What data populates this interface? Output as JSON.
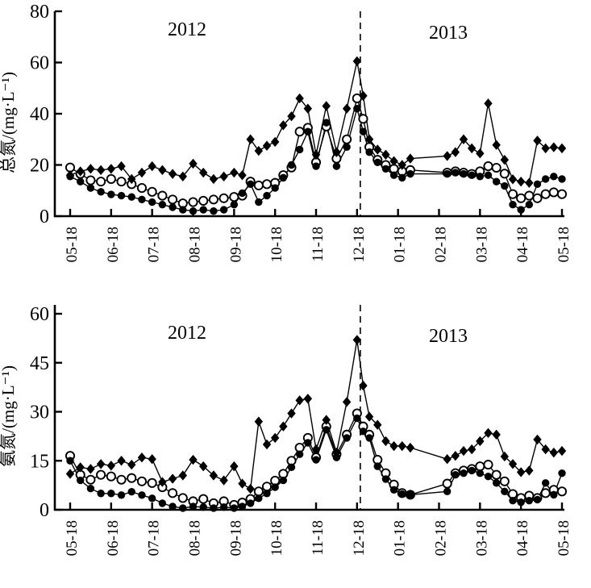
{
  "figure": {
    "type": "dual-line-chart",
    "background": "#ffffff",
    "line_color": "#000000"
  },
  "chart_data": [
    {
      "id": "total-nitrogen",
      "type": "line",
      "ylabel": "总氮/(mg·L⁻¹)",
      "xlabel": "",
      "ylim": [
        0,
        80
      ],
      "yticks": [
        0,
        20,
        40,
        60,
        80
      ],
      "xtick_labels": [
        "05-18",
        "06-18",
        "07-18",
        "08-18",
        "09-18",
        "10-18",
        "11-18",
        "12-18",
        "01-18",
        "02-18",
        "03-18",
        "04-18",
        "05-18"
      ],
      "annotations": [
        {
          "text": "2012"
        },
        {
          "text": "2013"
        }
      ],
      "year_divider_month": 7.08,
      "grid": false,
      "legend": "none",
      "x_months": [
        0,
        0.25,
        0.5,
        0.75,
        1,
        1.25,
        1.5,
        1.75,
        2,
        2.25,
        2.5,
        2.75,
        3,
        3.25,
        3.5,
        3.75,
        4,
        4.2,
        4.4,
        4.6,
        4.8,
        5,
        5.2,
        5.4,
        5.6,
        5.8,
        6,
        6.25,
        6.5,
        6.75,
        7,
        7.15,
        7.3,
        7.5,
        7.7,
        7.9,
        8.1,
        8.3,
        9.2,
        9.4,
        9.6,
        9.8,
        10,
        10.2,
        10.4,
        10.6,
        10.8,
        11,
        11.2,
        11.4,
        11.6,
        11.8,
        12
      ],
      "series": [
        {
          "name": "open-circle-site",
          "marker": "circle-open",
          "values": [
            19,
            16.5,
            14,
            13.5,
            14.5,
            13.5,
            12.5,
            11,
            9.5,
            8,
            6.5,
            5,
            5.5,
            6,
            6.5,
            7,
            7.5,
            8,
            13.5,
            12,
            12.5,
            13,
            16,
            19,
            33,
            34.5,
            21,
            35,
            22.5,
            30,
            46,
            38,
            27,
            22,
            20,
            18.5,
            17.5,
            18,
            17,
            17.5,
            17,
            16.5,
            17.5,
            19.5,
            18.9,
            16.6,
            8.6,
            7,
            8,
            7,
            8.6,
            9.3,
            8.6
          ]
        },
        {
          "name": "filled-circle-site",
          "marker": "circle-filled",
          "values": [
            15.5,
            13.5,
            11,
            9.5,
            8.5,
            8,
            7.5,
            6.5,
            5.5,
            4.5,
            3.5,
            2.5,
            2,
            2.5,
            2,
            2.5,
            4.5,
            9,
            12.5,
            5.5,
            8,
            11,
            15,
            20,
            26,
            33,
            19.5,
            36.5,
            19.5,
            27,
            42,
            33,
            25,
            21,
            18.5,
            16,
            15,
            16.5,
            16.5,
            17,
            16.5,
            16,
            15.5,
            16,
            13.5,
            11.8,
            4.5,
            2.5,
            4.5,
            12.5,
            14.5,
            15.5,
            14.5
          ]
        },
        {
          "name": "filled-diamond-site",
          "marker": "diamond",
          "values": [
            16,
            17.5,
            18.5,
            18,
            18.5,
            19.5,
            14.5,
            17,
            19.5,
            18,
            16.5,
            15.5,
            20.5,
            17,
            14.5,
            15.5,
            17,
            16,
            30,
            25.5,
            27.5,
            29,
            35.5,
            39,
            46,
            42,
            24,
            43,
            25,
            42,
            60.5,
            47,
            30,
            26,
            24,
            21.5,
            20,
            22.5,
            23.5,
            25,
            30,
            26.5,
            24.5,
            44,
            27.8,
            22,
            14.4,
            13.5,
            13,
            29.5,
            26.5,
            26.9,
            26.5
          ]
        }
      ]
    },
    {
      "id": "ammonia-nitrogen",
      "type": "line",
      "ylabel": "氨氮/(mg·L⁻¹)",
      "xlabel": "",
      "ylim": [
        0,
        60
      ],
      "yticks": [
        0,
        15,
        30,
        45,
        60
      ],
      "xtick_labels": [
        "05-18",
        "06-18",
        "07-18",
        "08-18",
        "09-18",
        "10-18",
        "11-18",
        "12-18",
        "01-18",
        "02-18",
        "03-18",
        "04-18",
        "05-18"
      ],
      "annotations": [
        {
          "text": "2012"
        },
        {
          "text": "2013"
        }
      ],
      "year_divider_month": 7.08,
      "grid": false,
      "legend": "none",
      "x_months": [
        0,
        0.25,
        0.5,
        0.75,
        1,
        1.25,
        1.5,
        1.75,
        2,
        2.25,
        2.5,
        2.75,
        3,
        3.25,
        3.5,
        3.75,
        4,
        4.2,
        4.4,
        4.6,
        4.8,
        5,
        5.2,
        5.4,
        5.6,
        5.8,
        6,
        6.25,
        6.5,
        6.75,
        7,
        7.15,
        7.3,
        7.5,
        7.7,
        7.9,
        8.1,
        8.3,
        9.2,
        9.4,
        9.6,
        9.8,
        10,
        10.2,
        10.4,
        10.6,
        10.8,
        11,
        11.2,
        11.4,
        11.6,
        11.8,
        12
      ],
      "series": [
        {
          "name": "open-circle-site",
          "marker": "circle-open",
          "values": [
            16.5,
            10.7,
            9.2,
            10.7,
            10.2,
            9.2,
            9.7,
            8.7,
            8.2,
            6.9,
            5.1,
            3.6,
            2.6,
            3.3,
            2,
            2.6,
            1.5,
            2.2,
            3.3,
            5.6,
            7.1,
            8.9,
            11,
            15,
            19,
            22,
            16,
            25.5,
            17,
            23,
            29.5,
            25.5,
            23,
            15.3,
            11.2,
            7.7,
            5.1,
            4.6,
            8,
            11.2,
            12,
            12.5,
            13.3,
            13.8,
            10.7,
            8.7,
            4.8,
            3.6,
            4.3,
            3.6,
            5.1,
            6.1,
            5.6
          ]
        },
        {
          "name": "filled-circle-site",
          "marker": "circle-filled",
          "values": [
            15,
            9,
            6.5,
            5,
            5,
            4.5,
            5.5,
            4.5,
            3.5,
            2,
            1,
            0.5,
            1,
            0.8,
            0.5,
            0.8,
            0.5,
            1,
            2,
            3.5,
            5,
            6.9,
            9,
            13,
            17,
            20.5,
            15.3,
            24.5,
            16,
            22,
            28,
            24,
            22,
            13.3,
            9.4,
            6.1,
            4.8,
            4.6,
            5.6,
            10.7,
            11.2,
            12,
            11.2,
            10.2,
            8.2,
            5.6,
            2.8,
            2.3,
            2.8,
            3.1,
            8.2,
            4.6,
            11.2
          ]
        },
        {
          "name": "filled-diamond-site",
          "marker": "diamond",
          "values": [
            11,
            13,
            12.5,
            14,
            13.5,
            15,
            13.8,
            16,
            15.5,
            8.5,
            9.5,
            10.5,
            15.3,
            13.3,
            10.5,
            9,
            13.3,
            8,
            6.4,
            27,
            20,
            22,
            25.5,
            29.5,
            33.5,
            34,
            18.5,
            27.5,
            17.5,
            33,
            52,
            38,
            28.5,
            26,
            21,
            19.5,
            19.5,
            19,
            15.5,
            16.5,
            18,
            18.5,
            21,
            23.5,
            23,
            16.3,
            14,
            11.5,
            12,
            21.5,
            18.5,
            17.5,
            18
          ]
        }
      ]
    }
  ]
}
